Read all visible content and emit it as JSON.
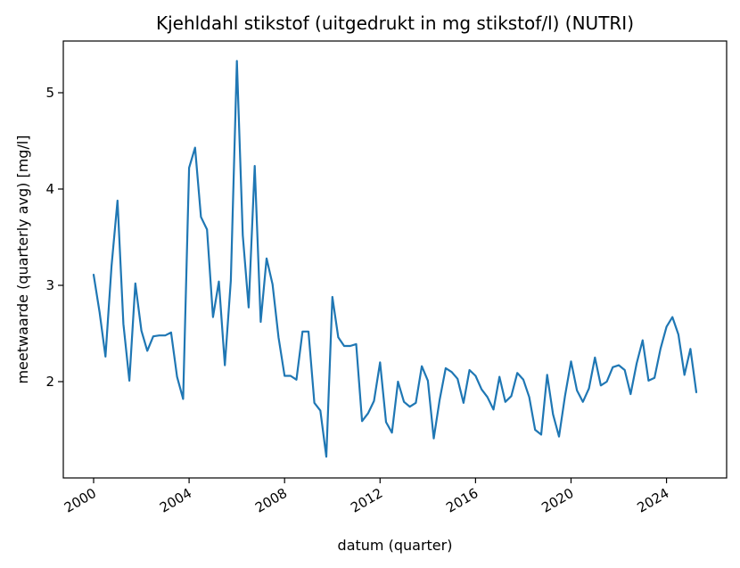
{
  "chart_data": {
    "type": "line",
    "title": "Kjehldahl stikstof (uitgedrukt in mg stikstof/l) (NUTRI)",
    "xlabel": "datum (quarter)",
    "ylabel": "meetwaarde (quarterly avg) [mg/l]",
    "x_tick_labels": [
      "2000",
      "2004",
      "2008",
      "2012",
      "2016",
      "2020",
      "2024"
    ],
    "y_tick_labels": [
      "2",
      "3",
      "4",
      "5"
    ],
    "grid": false,
    "legend": "none",
    "color": "#1f77b4",
    "series": [
      {
        "x": [
          "2000-01-01",
          "2000-04-01",
          "2000-07-01",
          "2000-10-01",
          "2001-01-01",
          "2001-04-01",
          "2001-07-01",
          "2001-10-01",
          "2002-01-01",
          "2002-04-01",
          "2002-07-01",
          "2002-10-01",
          "2003-01-01",
          "2003-04-01",
          "2003-07-01",
          "2003-10-01",
          "2004-01-01",
          "2004-04-01",
          "2004-07-01",
          "2004-10-01",
          "2005-01-01",
          "2005-04-01",
          "2005-07-01",
          "2005-10-01",
          "2006-01-01",
          "2006-04-01",
          "2006-07-01",
          "2006-10-01",
          "2007-01-01",
          "2007-04-01",
          "2007-07-01",
          "2007-10-01",
          "2008-01-01",
          "2008-04-01",
          "2008-07-01",
          "2008-10-01",
          "2009-01-01",
          "2009-04-01",
          "2009-07-01",
          "2009-10-01",
          "2010-01-01",
          "2010-04-01",
          "2010-07-01",
          "2010-10-01",
          "2011-01-01",
          "2011-04-01",
          "2011-07-01",
          "2011-10-01",
          "2012-01-01",
          "2012-04-01",
          "2012-07-01",
          "2012-10-01",
          "2013-01-01",
          "2013-04-01",
          "2013-07-01",
          "2013-10-01",
          "2014-01-01",
          "2014-04-01",
          "2014-07-01",
          "2014-10-01",
          "2015-01-01",
          "2015-04-01",
          "2015-07-01",
          "2015-10-01",
          "2016-01-01",
          "2016-04-01",
          "2016-07-01",
          "2016-10-01",
          "2017-01-01",
          "2017-04-01",
          "2017-07-01",
          "2017-10-01",
          "2018-01-01",
          "2018-04-01",
          "2018-07-01",
          "2018-10-01",
          "2019-01-01",
          "2019-04-01",
          "2019-07-01",
          "2019-10-01",
          "2020-01-01",
          "2020-04-01",
          "2020-07-01",
          "2020-10-01",
          "2021-01-01",
          "2021-04-01",
          "2021-07-01",
          "2021-10-01",
          "2022-01-01",
          "2022-04-01",
          "2022-07-01",
          "2022-10-01",
          "2023-01-01",
          "2023-04-01",
          "2023-07-01",
          "2023-10-01",
          "2024-01-01",
          "2024-04-01",
          "2024-07-01",
          "2024-10-01",
          "2025-01-01",
          "2025-04-01"
        ],
        "y": [
          3.11,
          2.72,
          2.26,
          3.2,
          3.88,
          2.6,
          2.01,
          3.02,
          2.53,
          2.32,
          2.47,
          2.48,
          2.48,
          2.51,
          2.05,
          1.82,
          4.22,
          4.43,
          3.71,
          3.58,
          2.67,
          3.04,
          2.17,
          3.05,
          5.33,
          3.52,
          2.77,
          4.24,
          2.62,
          3.28,
          3.01,
          2.46,
          2.06,
          2.06,
          2.02,
          2.52,
          2.52,
          1.78,
          1.7,
          1.22,
          2.88,
          2.46,
          2.37,
          2.37,
          2.39,
          1.59,
          1.67,
          1.8,
          2.2,
          1.58,
          1.47,
          2.0,
          1.79,
          1.74,
          1.78,
          2.16,
          2.01,
          1.41,
          1.81,
          2.14,
          2.1,
          2.03,
          1.78,
          2.12,
          2.06,
          1.92,
          1.84,
          1.71,
          2.05,
          1.79,
          1.85,
          2.09,
          2.02,
          1.84,
          1.5,
          1.45,
          2.07,
          1.66,
          1.43,
          1.85,
          2.21,
          1.91,
          1.79,
          1.93,
          2.25,
          1.96,
          2.0,
          2.15,
          2.17,
          2.12,
          1.87,
          2.19,
          2.43,
          2.01,
          2.04,
          2.34,
          2.57,
          2.67,
          2.49,
          2.07,
          2.34,
          1.89
        ]
      }
    ]
  }
}
